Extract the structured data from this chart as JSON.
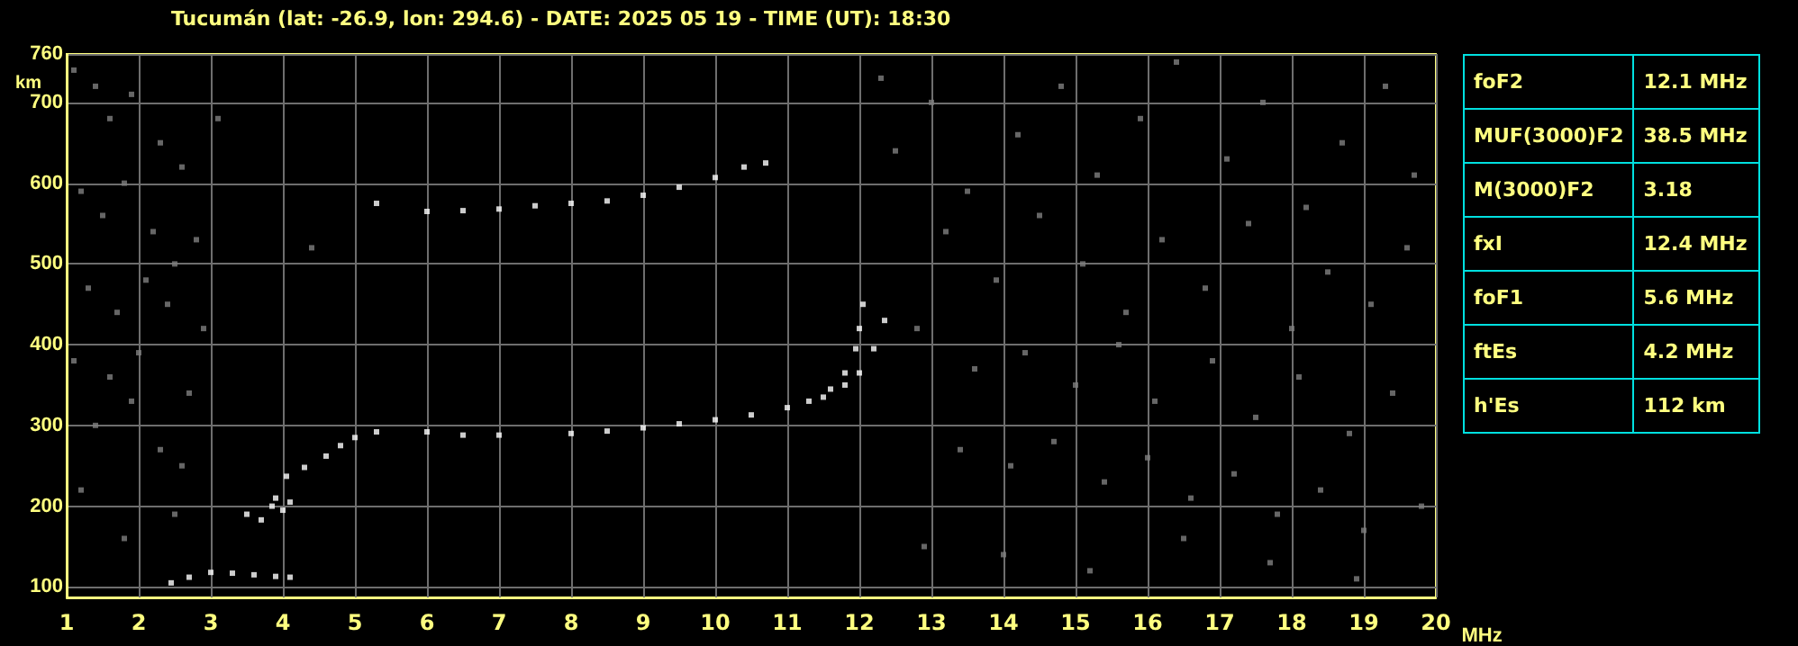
{
  "chart_data": [
    {
      "type": "scatter",
      "title": "Tucumán (lat: -26.9, lon: 294.6) - DATE: 2025 05 19 - TIME (UT): 18:30",
      "xlabel": "MHz",
      "ylabel": "km",
      "xlim": [
        1,
        20
      ],
      "xticks": [
        1,
        2,
        3,
        4,
        5,
        6,
        7,
        8,
        9,
        10,
        11,
        12,
        13,
        14,
        15,
        16,
        17,
        18,
        19,
        20
      ],
      "ylim": [
        87,
        760
      ],
      "yticks": [
        100,
        200,
        300,
        400,
        500,
        600,
        700,
        760
      ],
      "grid": true,
      "marker": "square",
      "series": [
        {
          "color": "#808080",
          "x": [
            1.1,
            1.4,
            1.6,
            1.9,
            2.3,
            2.6,
            1.2,
            1.5,
            1.8,
            2.2,
            2.5,
            2.8,
            1.3,
            1.7,
            2.1,
            2.4,
            2.9,
            1.1,
            1.6,
            2.0,
            2.7,
            1.4,
            1.9,
            2.3,
            2.6,
            1.2,
            1.8,
            2.5,
            3.1,
            4.4,
            12.3,
            12.5,
            13.0,
            13.5,
            14.2,
            14.8,
            15.3,
            15.9,
            16.4,
            17.1,
            17.6,
            18.2,
            18.7,
            19.3,
            19.7,
            13.2,
            13.9,
            14.5,
            15.1,
            15.7,
            16.2,
            16.8,
            17.4,
            18.0,
            18.5,
            19.1,
            19.6,
            12.8,
            13.6,
            14.3,
            15.0,
            15.6,
            16.1,
            16.9,
            17.5,
            18.1,
            18.8,
            19.4,
            13.4,
            14.1,
            14.7,
            15.4,
            16.0,
            16.6,
            17.2,
            17.8,
            18.4,
            19.0,
            19.8,
            12.9,
            14.0,
            15.2,
            16.5,
            17.7,
            18.9
          ],
          "values": [
            740,
            720,
            680,
            710,
            650,
            620,
            590,
            560,
            600,
            540,
            500,
            530,
            470,
            440,
            480,
            450,
            420,
            380,
            360,
            390,
            340,
            300,
            330,
            270,
            250,
            220,
            160,
            190,
            680,
            520,
            730,
            640,
            700,
            590,
            660,
            720,
            610,
            680,
            750,
            630,
            700,
            570,
            650,
            720,
            610,
            540,
            480,
            560,
            500,
            440,
            530,
            470,
            550,
            420,
            490,
            450,
            520,
            420,
            370,
            390,
            350,
            400,
            330,
            380,
            310,
            360,
            290,
            340,
            270,
            250,
            280,
            230,
            260,
            210,
            240,
            190,
            220,
            170,
            200,
            150,
            140,
            120,
            160,
            130,
            110
          ]
        },
        {
          "color": "#ffffff",
          "x": [
            2.45,
            2.7,
            3.0,
            3.3,
            3.6,
            3.9,
            4.1,
            3.5,
            3.7,
            3.85,
            3.9,
            4.0,
            4.1,
            4.05,
            4.3,
            4.6,
            4.8,
            5.0,
            5.3,
            6.0,
            6.5,
            7.0,
            8.0,
            8.5,
            9.0,
            9.5,
            10.0,
            10.5,
            11.0,
            11.3,
            11.6,
            11.8,
            11.95,
            12.0,
            12.05,
            11.5,
            11.8,
            12.0,
            12.2,
            12.35,
            5.3,
            6.0,
            6.5,
            7.0,
            7.5,
            8.0,
            8.5,
            9.0,
            9.5,
            10.0,
            10.4,
            10.7
          ],
          "values": [
            105,
            112,
            118,
            117,
            115,
            113,
            112,
            190,
            183,
            200,
            210,
            195,
            205,
            237,
            248,
            262,
            275,
            285,
            292,
            292,
            288,
            288,
            290,
            293,
            297,
            302,
            307,
            313,
            322,
            330,
            345,
            365,
            395,
            420,
            450,
            335,
            350,
            365,
            395,
            430,
            575,
            565,
            566,
            568,
            572,
            575,
            578,
            585,
            595,
            607,
            620,
            625
          ]
        }
      ]
    },
    {
      "type": "other",
      "annotations": [
        "foF2",
        "12.1 MHz",
        "MUF(3000)F2",
        "38.5 MHz",
        "M(3000)F2",
        "3.18",
        "fxI",
        "12.4 MHz",
        "foF1",
        "5.6 MHz",
        "ftEs",
        "4.2 MHz",
        "h'Es",
        "112 km"
      ]
    }
  ]
}
